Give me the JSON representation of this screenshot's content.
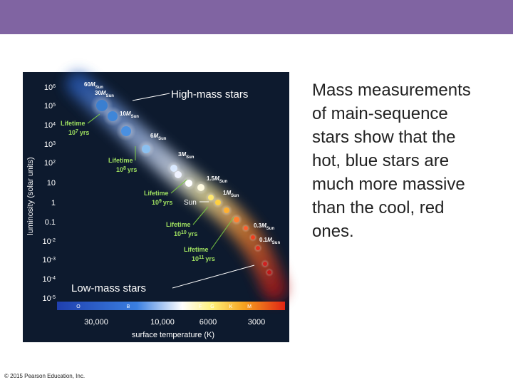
{
  "figure": {
    "y_axis_label": "luminosity (solar units)",
    "y_ticks": [
      {
        "base": "10",
        "exp": "6"
      },
      {
        "base": "10",
        "exp": "5"
      },
      {
        "base": "10",
        "exp": "4"
      },
      {
        "base": "10",
        "exp": "3"
      },
      {
        "base": "10",
        "exp": "2"
      },
      {
        "base": "10"
      },
      {
        "base": "1"
      },
      {
        "base": "0.1"
      },
      {
        "base": "10",
        "exp": "-2"
      },
      {
        "base": "10",
        "exp": "-3"
      },
      {
        "base": "10",
        "exp": "-4"
      },
      {
        "base": "10",
        "exp": "-5"
      }
    ],
    "spectral_classes": [
      "O",
      "B",
      "A",
      "F",
      "G",
      "K",
      "M"
    ],
    "x_ticks": [
      "30,000",
      "10,000",
      "6000",
      "3000"
    ],
    "x_axis_label": "surface temperature (K)",
    "masses": [
      {
        "value": "60",
        "symbol": "M",
        "sub": "Sun"
      },
      {
        "value": "30",
        "symbol": "M",
        "sub": "Sun"
      },
      {
        "value": "10",
        "symbol": "M",
        "sub": "Sun"
      },
      {
        "value": "6",
        "symbol": "M",
        "sub": "Sun"
      },
      {
        "value": "3",
        "symbol": "M",
        "sub": "Sun"
      },
      {
        "value": "1.5",
        "symbol": "M",
        "sub": "Sun"
      },
      {
        "value": "1",
        "symbol": "M",
        "sub": "Sun"
      },
      {
        "value": "0.3",
        "symbol": "M",
        "sub": "Sun"
      },
      {
        "value": "0.1",
        "symbol": "M",
        "sub": "Sun"
      }
    ],
    "lifetimes": [
      {
        "label": "Lifetime",
        "base": "10",
        "exp": "7",
        "unit": "yrs"
      },
      {
        "label": "Lifetime",
        "base": "10",
        "exp": "8",
        "unit": "yrs"
      },
      {
        "label": "Lifetime",
        "base": "10",
        "exp": "9",
        "unit": "yrs"
      },
      {
        "label": "Lifetime",
        "base": "10",
        "exp": "10",
        "unit": "yrs"
      },
      {
        "label": "Lifetime",
        "base": "10",
        "exp": "11",
        "unit": "yrs"
      }
    ],
    "sun_label": "Sun",
    "high_mass_label": "High-mass stars",
    "low_mass_label": "Low-mass stars"
  },
  "body": {
    "lines": [
      "Mass measurements",
      "of main-sequence",
      "stars show that the",
      "hot, blue stars are",
      "much more massive",
      "than the cool, red",
      "ones."
    ]
  },
  "footer": {
    "copyright": "© 2015 Pearson Education, Inc."
  }
}
